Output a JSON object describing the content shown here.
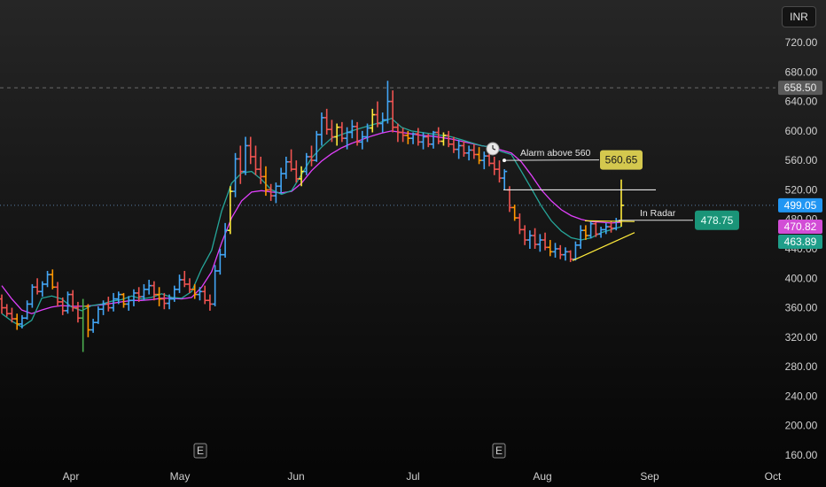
{
  "header": {
    "currency": "INR"
  },
  "chart_data": {
    "type": "ohlc",
    "ylim": [
      160,
      760
    ],
    "y_ticks": [
      "720.00",
      "680.00",
      "640.00",
      "600.00",
      "560.00",
      "520.00",
      "480.00",
      "440.00",
      "400.00",
      "360.00",
      "320.00",
      "280.00",
      "240.00",
      "200.00",
      "160.00"
    ],
    "x_ticks": [
      "Apr",
      "May",
      "Jun",
      "Jul",
      "Aug",
      "Sep",
      "Oct"
    ],
    "colors": {
      "up": "#42a5f5",
      "down": "#ef5350",
      "up_alt": "#ffeb3b",
      "down_alt": "#ff9800",
      "doji": "#4caf50",
      "ema_fast": "#26a69a",
      "ema_slow": "#e040fb",
      "trend": "#ffeb3b"
    },
    "series": [
      {
        "name": "",
        "values": [
          [
            372,
            378,
            352,
            360
          ],
          [
            360,
            365,
            348,
            352
          ],
          [
            352,
            360,
            340,
            345
          ],
          [
            345,
            352,
            330,
            338
          ],
          [
            338,
            350,
            332,
            346
          ],
          [
            346,
            370,
            344,
            365
          ],
          [
            365,
            392,
            360,
            388
          ],
          [
            388,
            400,
            378,
            382
          ],
          [
            382,
            396,
            375,
            392
          ],
          [
            392,
            410,
            388,
            405
          ],
          [
            405,
            412,
            385,
            388
          ],
          [
            388,
            395,
            362,
            368
          ],
          [
            368,
            374,
            350,
            356
          ],
          [
            356,
            382,
            352,
            378
          ],
          [
            378,
            384,
            355,
            360
          ],
          [
            360,
            368,
            340,
            346
          ],
          [
            346,
            372,
            300,
            362
          ],
          [
            362,
            365,
            320,
            330
          ],
          [
            330,
            345,
            326,
            340
          ],
          [
            340,
            362,
            338,
            358
          ],
          [
            358,
            370,
            350,
            365
          ],
          [
            365,
            375,
            355,
            360
          ],
          [
            360,
            380,
            355,
            372
          ],
          [
            372,
            382,
            365,
            378
          ],
          [
            378,
            380,
            360,
            365
          ],
          [
            365,
            376,
            356,
            370
          ],
          [
            370,
            385,
            362,
            380
          ],
          [
            380,
            388,
            368,
            375
          ],
          [
            375,
            392,
            370,
            385
          ],
          [
            385,
            398,
            378,
            390
          ],
          [
            390,
            396,
            370,
            378
          ],
          [
            378,
            388,
            362,
            372
          ],
          [
            372,
            380,
            358,
            366
          ],
          [
            366,
            378,
            358,
            372
          ],
          [
            372,
            390,
            368,
            385
          ],
          [
            385,
            405,
            380,
            398
          ],
          [
            398,
            410,
            388,
            392
          ],
          [
            392,
            400,
            380,
            385
          ],
          [
            385,
            392,
            372,
            378
          ],
          [
            378,
            388,
            370,
            382
          ],
          [
            382,
            390,
            365,
            370
          ],
          [
            370,
            378,
            356,
            365
          ],
          [
            365,
            418,
            362,
            410
          ],
          [
            410,
            440,
            405,
            432
          ],
          [
            432,
            475,
            428,
            465
          ],
          [
            465,
            525,
            460,
            518
          ],
          [
            518,
            570,
            510,
            562
          ],
          [
            562,
            580,
            528,
            545
          ],
          [
            545,
            592,
            540,
            580
          ],
          [
            580,
            592,
            555,
            565
          ],
          [
            565,
            580,
            540,
            548
          ],
          [
            548,
            565,
            528,
            538
          ],
          [
            538,
            552,
            512,
            520
          ],
          [
            520,
            528,
            505,
            512
          ],
          [
            512,
            530,
            502,
            525
          ],
          [
            525,
            550,
            515,
            542
          ],
          [
            542,
            565,
            535,
            558
          ],
          [
            558,
            575,
            545,
            548
          ],
          [
            548,
            560,
            530,
            535
          ],
          [
            535,
            552,
            525,
            545
          ],
          [
            545,
            570,
            540,
            565
          ],
          [
            565,
            580,
            552,
            560
          ],
          [
            560,
            600,
            558,
            595
          ],
          [
            595,
            625,
            580,
            618
          ],
          [
            618,
            630,
            595,
            602
          ],
          [
            602,
            615,
            585,
            592
          ],
          [
            592,
            610,
            580,
            605
          ],
          [
            605,
            612,
            585,
            590
          ],
          [
            590,
            605,
            575,
            598
          ],
          [
            598,
            615,
            590,
            606
          ],
          [
            606,
            612,
            580,
            585
          ],
          [
            585,
            600,
            575,
            592
          ],
          [
            592,
            610,
            585,
            604
          ],
          [
            604,
            630,
            598,
            622
          ],
          [
            622,
            640,
            605,
            610
          ],
          [
            610,
            625,
            598,
            615
          ],
          [
            615,
            668,
            610,
            640
          ],
          [
            640,
            655,
            598,
            605
          ],
          [
            605,
            610,
            585,
            598
          ],
          [
            598,
            604,
            585,
            594
          ],
          [
            594,
            600,
            582,
            590
          ],
          [
            590,
            598,
            582,
            596
          ],
          [
            596,
            604,
            580,
            585
          ],
          [
            585,
            598,
            575,
            592
          ],
          [
            592,
            596,
            578,
            582
          ],
          [
            582,
            600,
            576,
            598
          ],
          [
            598,
            605,
            582,
            586
          ],
          [
            586,
            598,
            580,
            594
          ],
          [
            594,
            600,
            578,
            582
          ],
          [
            582,
            592,
            570,
            575
          ],
          [
            575,
            588,
            562,
            580
          ],
          [
            580,
            586,
            565,
            570
          ],
          [
            570,
            580,
            560,
            574
          ],
          [
            574,
            582,
            562,
            568
          ],
          [
            568,
            578,
            555,
            560
          ],
          [
            560,
            572,
            548,
            566
          ],
          [
            566,
            575,
            552,
            556
          ],
          [
            556,
            565,
            540,
            548
          ],
          [
            548,
            560,
            530,
            536
          ],
          [
            536,
            548,
            520,
            545
          ],
          [
            520,
            525,
            490,
            496
          ],
          [
            496,
            500,
            478,
            482
          ],
          [
            482,
            488,
            460,
            466
          ],
          [
            466,
            472,
            445,
            452
          ],
          [
            452,
            465,
            440,
            458
          ],
          [
            458,
            468,
            440,
            446
          ],
          [
            446,
            460,
            436,
            452
          ],
          [
            452,
            462,
            438,
            442
          ],
          [
            442,
            452,
            430,
            436
          ],
          [
            436,
            448,
            428,
            440
          ],
          [
            440,
            445,
            426,
            432
          ],
          [
            432,
            442,
            424,
            436
          ],
          [
            436,
            438,
            422,
            426
          ],
          [
            426,
            450,
            424,
            445
          ],
          [
            445,
            472,
            440,
            465
          ],
          [
            465,
            472,
            452,
            458
          ],
          [
            458,
            478,
            454,
            474
          ],
          [
            474,
            476,
            456,
            460
          ],
          [
            460,
            470,
            455,
            466
          ],
          [
            466,
            475,
            460,
            470
          ],
          [
            470,
            478,
            462,
            468
          ],
          [
            468,
            482,
            465,
            478
          ],
          [
            478,
            534,
            470,
            499
          ]
        ]
      }
    ],
    "ema_fast": [
      352,
      342,
      334,
      343,
      373,
      376,
      372,
      361,
      356,
      363,
      365,
      369,
      371,
      376,
      372,
      374,
      379,
      374,
      373,
      382,
      413,
      438,
      491,
      529,
      543,
      545,
      534,
      520,
      514,
      519,
      541,
      563,
      578,
      590,
      595,
      600,
      604,
      608,
      612,
      617,
      605,
      600,
      598,
      596,
      594,
      592,
      588,
      584,
      580,
      578,
      572,
      568,
      545,
      522,
      498,
      478,
      464,
      455,
      452,
      455,
      462,
      466,
      470
    ],
    "ema_slow": [
      390,
      372,
      357,
      352,
      357,
      361,
      363,
      362,
      362,
      363,
      364,
      366,
      368,
      370,
      370,
      371,
      373,
      373,
      372,
      374,
      388,
      409,
      448,
      482,
      505,
      517,
      519,
      517,
      516,
      518,
      529,
      546,
      559,
      569,
      577,
      583,
      588,
      593,
      597,
      600,
      598,
      596,
      594,
      593,
      591,
      589,
      586,
      583,
      580,
      578,
      574,
      570,
      558,
      540,
      520,
      505,
      493,
      485,
      480,
      477,
      476,
      475,
      476
    ],
    "trendlines": [
      {
        "label": "Alarm above 560",
        "value": 560.65,
        "tag_color": "#d4c84e",
        "text_color": "#1a1a1a"
      },
      {
        "label": "In Radar",
        "value": 478.75,
        "tag_color": "#1a9478",
        "text_color": "#e8fff8"
      }
    ],
    "resistance": 520,
    "ceiling_line": 658.5,
    "price_tags": [
      {
        "value": "658.50",
        "color": "#5a5a5a",
        "text_color": "#e8e8e8"
      },
      {
        "value": "499.05",
        "color": "#2196f3",
        "text_color": "#ffffff"
      },
      {
        "value": "470.82",
        "color": "#d24dd6",
        "text_color": "#ffffff"
      },
      {
        "value": "463.89",
        "color": "#1f9e8a",
        "text_color": "#ffffff"
      }
    ],
    "events": [
      "E",
      "E"
    ]
  }
}
